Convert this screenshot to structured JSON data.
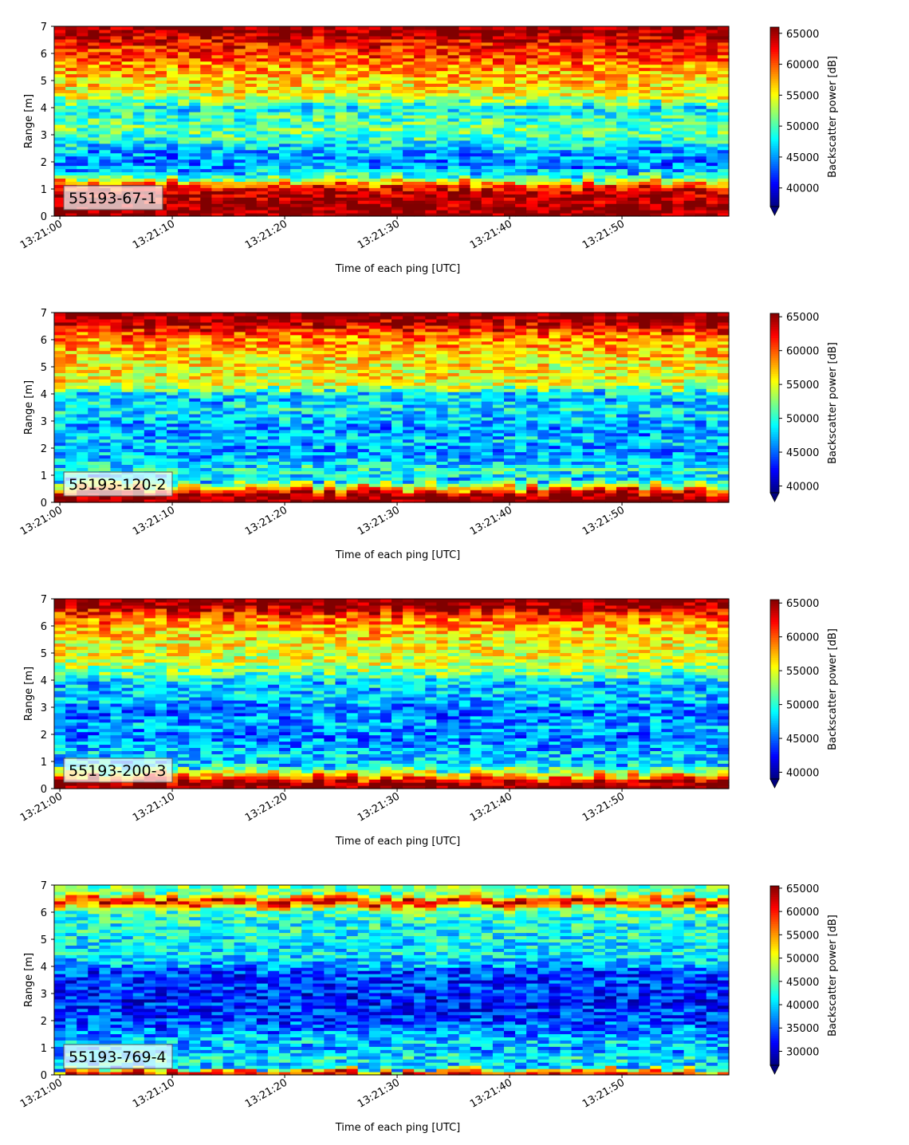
{
  "chart_data": [
    {
      "type": "heatmap",
      "label": "55193-67-1",
      "xlabel": "Time of each ping [UTC]",
      "ylabel": "Range [m]",
      "x_range": [
        "13:21:00",
        "13:21:59"
      ],
      "x_ticks": [
        "13:21:00",
        "13:21:10",
        "13:21:20",
        "13:21:30",
        "13:21:40",
        "13:21:50"
      ],
      "y_range": [
        0,
        7
      ],
      "y_ticks": [
        0,
        1,
        2,
        3,
        4,
        5,
        6,
        7
      ],
      "colorbar_label": "Backscatter power [dB]",
      "colorbar_range": [
        37000,
        66000
      ],
      "colorbar_ticks": [
        40000,
        45000,
        50000,
        55000,
        60000,
        65000
      ],
      "colormap": "jet",
      "profile": {
        "range_m": [
          0.1,
          0.3,
          0.6,
          0.9,
          1.15,
          1.4,
          1.7,
          2.0,
          2.3,
          2.6,
          2.9,
          3.2,
          3.5,
          3.8,
          4.0,
          4.3,
          4.6,
          4.9,
          5.2,
          5.5,
          5.8,
          6.1,
          6.4,
          6.7,
          6.9
        ],
        "typical_power": [
          66000,
          66000,
          65000,
          64000,
          60000,
          51000,
          46000,
          44000,
          45000,
          47000,
          50000,
          51000,
          50000,
          49000,
          47000,
          53000,
          55000,
          56000,
          57000,
          58000,
          60000,
          61000,
          62000,
          65000,
          66000
        ]
      }
    },
    {
      "type": "heatmap",
      "label": "55193-120-2",
      "xlabel": "Time of each ping [UTC]",
      "ylabel": "Range [m]",
      "x_range": [
        "13:21:00",
        "13:21:59"
      ],
      "x_ticks": [
        "13:21:00",
        "13:21:10",
        "13:21:20",
        "13:21:30",
        "13:21:40",
        "13:21:50"
      ],
      "y_range": [
        0,
        7
      ],
      "y_ticks": [
        0,
        1,
        2,
        3,
        4,
        5,
        6,
        7
      ],
      "colorbar_label": "Backscatter power [dB]",
      "colorbar_range": [
        39000,
        65500
      ],
      "colorbar_ticks": [
        40000,
        45000,
        50000,
        55000,
        60000,
        65000
      ],
      "colormap": "jet",
      "profile": {
        "range_m": [
          0.1,
          0.3,
          0.6,
          0.9,
          1.15,
          1.4,
          1.7,
          2.0,
          2.3,
          2.6,
          2.9,
          3.2,
          3.5,
          3.8,
          4.0,
          4.3,
          4.6,
          4.9,
          5.2,
          5.5,
          5.8,
          6.1,
          6.4,
          6.7,
          6.9
        ],
        "typical_power": [
          65500,
          65500,
          55000,
          47000,
          50000,
          48000,
          47000,
          46000,
          48000,
          46000,
          47000,
          48000,
          49000,
          47000,
          48000,
          54000,
          56000,
          55000,
          56000,
          57000,
          58000,
          59000,
          62000,
          65000,
          65500
        ]
      }
    },
    {
      "type": "heatmap",
      "label": "55193-200-3",
      "xlabel": "Time of each ping [UTC]",
      "ylabel": "Range [m]",
      "x_range": [
        "13:21:00",
        "13:21:59"
      ],
      "x_ticks": [
        "13:21:00",
        "13:21:10",
        "13:21:20",
        "13:21:30",
        "13:21:40",
        "13:21:50"
      ],
      "y_range": [
        0,
        7
      ],
      "y_ticks": [
        0,
        1,
        2,
        3,
        4,
        5,
        6,
        7
      ],
      "colorbar_label": "Backscatter power [dB]",
      "colorbar_range": [
        39000,
        65500
      ],
      "colorbar_ticks": [
        40000,
        45000,
        50000,
        55000,
        60000,
        65000
      ],
      "colormap": "jet",
      "profile": {
        "range_m": [
          0.1,
          0.3,
          0.6,
          0.9,
          1.15,
          1.4,
          1.7,
          2.0,
          2.3,
          2.6,
          2.9,
          3.2,
          3.5,
          3.8,
          4.0,
          4.3,
          4.6,
          4.9,
          5.2,
          5.5,
          5.8,
          6.1,
          6.4,
          6.7,
          6.9
        ],
        "typical_power": [
          65500,
          63000,
          54000,
          47000,
          48000,
          47000,
          46000,
          45000,
          47000,
          46000,
          45000,
          47000,
          48000,
          47000,
          49000,
          52000,
          54000,
          55000,
          55000,
          56000,
          57000,
          58000,
          61000,
          65000,
          65500
        ]
      }
    },
    {
      "type": "heatmap",
      "label": "55193-769-4",
      "xlabel": "Time of each ping [UTC]",
      "ylabel": "Range [m]",
      "x_range": [
        "13:21:00",
        "13:21:59"
      ],
      "x_ticks": [
        "13:21:00",
        "13:21:10",
        "13:21:20",
        "13:21:30",
        "13:21:40",
        "13:21:50"
      ],
      "y_range": [
        0,
        7
      ],
      "y_ticks": [
        0,
        1,
        2,
        3,
        4,
        5,
        6,
        7
      ],
      "colorbar_label": "Backscatter power [dB]",
      "colorbar_range": [
        27000,
        65500
      ],
      "colorbar_ticks": [
        30000,
        35000,
        40000,
        45000,
        50000,
        55000,
        60000,
        65000
      ],
      "colormap": "jet",
      "profile": {
        "range_m": [
          0.1,
          0.3,
          0.6,
          0.9,
          1.15,
          1.4,
          1.7,
          2.0,
          2.3,
          2.6,
          2.9,
          3.2,
          3.5,
          3.8,
          4.0,
          4.3,
          4.6,
          4.9,
          5.2,
          5.5,
          5.8,
          6.1,
          6.4,
          6.7,
          6.9
        ],
        "typical_power": [
          60000,
          38000,
          42000,
          38000,
          40000,
          38000,
          36000,
          34000,
          34000,
          33000,
          33000,
          34000,
          34000,
          34000,
          37000,
          40000,
          41000,
          41000,
          42000,
          42000,
          43000,
          45000,
          63000,
          45000,
          46000
        ]
      }
    }
  ]
}
